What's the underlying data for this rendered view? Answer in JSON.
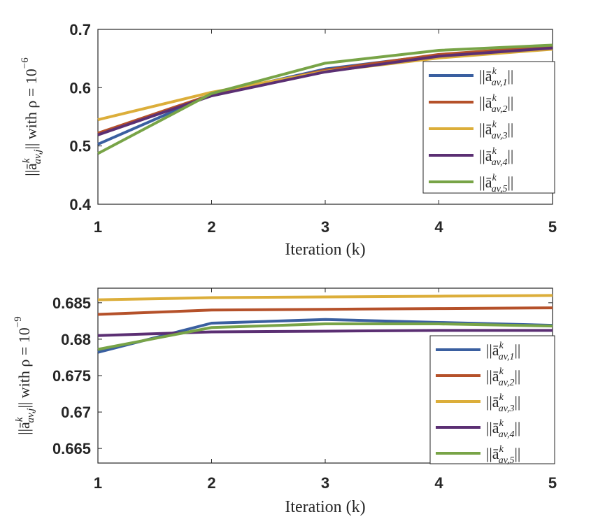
{
  "chart_data": [
    {
      "type": "line",
      "title": "",
      "xlabel": "Iteration (k)",
      "ylabel": "||ā^k_{av,j}|| with ρ = 10^-6",
      "ylabel_parts": {
        "pre": "||ā",
        "sup": "k",
        "sub": "av,j",
        "post": "|| with ρ = 10",
        "exp": "−6"
      },
      "x": [
        1,
        2,
        3,
        4,
        5
      ],
      "xlim": [
        1,
        5
      ],
      "ylim": [
        0.4,
        0.7
      ],
      "xticks": [
        "1",
        "2",
        "3",
        "4",
        "5"
      ],
      "yticks": [
        0.4,
        0.5,
        0.6,
        0.7
      ],
      "ytick_labels": [
        "0.4",
        "0.5",
        "0.6",
        "0.7"
      ],
      "legend_position": "right",
      "series": [
        {
          "name": "||ā^k_{av,1}||",
          "sup": "k",
          "sub": "av,1",
          "color": "#3a5fa0",
          "values": [
            0.503,
            0.588,
            0.632,
            0.656,
            0.67
          ]
        },
        {
          "name": "||ā^k_{av,2}||",
          "sup": "k",
          "sub": "av,2",
          "color": "#b5512a",
          "values": [
            0.522,
            0.588,
            0.63,
            0.657,
            0.671
          ]
        },
        {
          "name": "||ā^k_{av,3}||",
          "sup": "k",
          "sub": "av,3",
          "color": "#dcae3a",
          "values": [
            0.545,
            0.592,
            0.628,
            0.651,
            0.666
          ]
        },
        {
          "name": "||ā^k_{av,4}||",
          "sup": "k",
          "sub": "av,4",
          "color": "#5b2f73",
          "values": [
            0.519,
            0.586,
            0.627,
            0.654,
            0.668
          ]
        },
        {
          "name": "||ā^k_{av,5}||",
          "sup": "k",
          "sub": "av,5",
          "color": "#78a447",
          "values": [
            0.487,
            0.59,
            0.642,
            0.664,
            0.673
          ]
        }
      ]
    },
    {
      "type": "line",
      "title": "",
      "xlabel": "Iteration (k)",
      "ylabel": "||ā^k_{av,j}|| with ρ = 10^-9",
      "ylabel_parts": {
        "pre": "||ā",
        "sup": "k",
        "sub": "av,j",
        "post": "|| with ρ = 10",
        "exp": "−9"
      },
      "x": [
        1,
        2,
        3,
        4,
        5
      ],
      "xlim": [
        1,
        5
      ],
      "ylim": [
        0.663,
        0.687
      ],
      "xticks": [
        "1",
        "2",
        "3",
        "4",
        "5"
      ],
      "yticks": [
        0.665,
        0.67,
        0.675,
        0.68,
        0.685
      ],
      "ytick_labels": [
        "0.665",
        "0.67",
        "0.675",
        "0.68",
        "0.685"
      ],
      "legend_position": "right",
      "series": [
        {
          "name": "||ā^k_{av,1}||",
          "sup": "k",
          "sub": "av,1",
          "color": "#3a5fa0",
          "values": [
            0.6782,
            0.6822,
            0.6827,
            0.6823,
            0.6819
          ]
        },
        {
          "name": "||ā^k_{av,2}||",
          "sup": "k",
          "sub": "av,2",
          "color": "#b5512a",
          "values": [
            0.6834,
            0.684,
            0.6841,
            0.6842,
            0.6843
          ]
        },
        {
          "name": "||ā^k_{av,3}||",
          "sup": "k",
          "sub": "av,3",
          "color": "#dcae3a",
          "values": [
            0.6854,
            0.6857,
            0.6858,
            0.6859,
            0.686
          ]
        },
        {
          "name": "||ā^k_{av,4}||",
          "sup": "k",
          "sub": "av,4",
          "color": "#5b2f73",
          "values": [
            0.6805,
            0.681,
            0.6811,
            0.6812,
            0.6812
          ]
        },
        {
          "name": "||ā^k_{av,5}||",
          "sup": "k",
          "sub": "av,5",
          "color": "#78a447",
          "values": [
            0.6786,
            0.6816,
            0.6821,
            0.6821,
            0.6818
          ]
        }
      ]
    }
  ]
}
